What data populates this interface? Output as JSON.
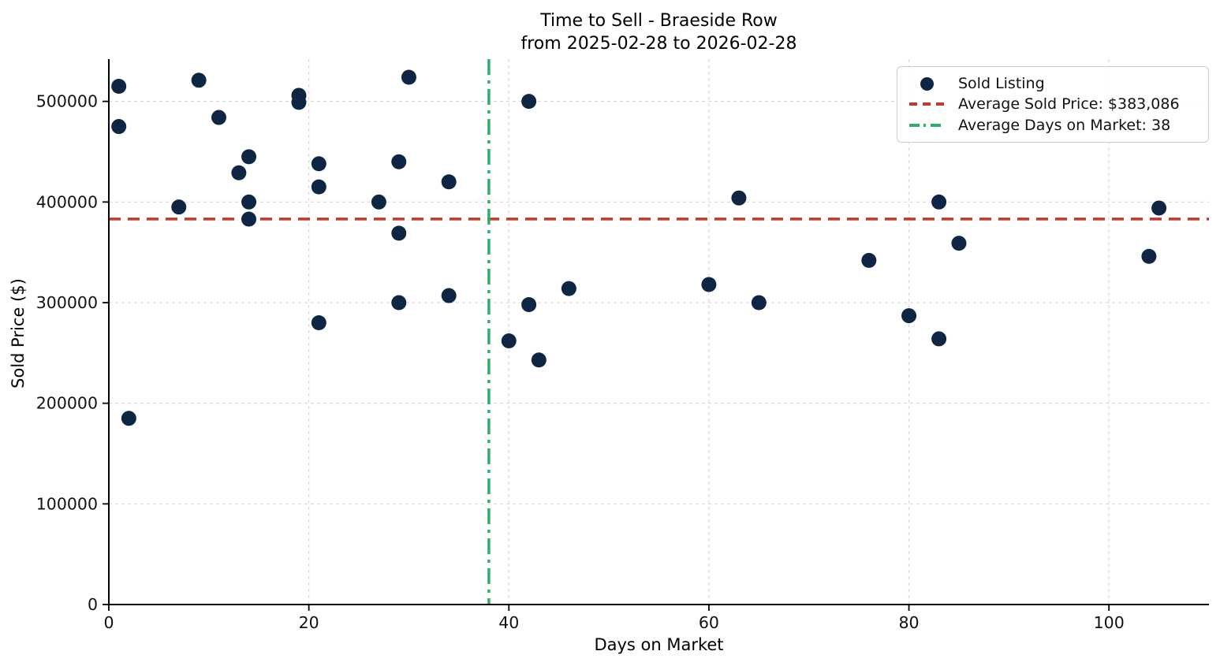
{
  "chart_data": {
    "type": "scatter",
    "title": "Time to Sell - Braeside Row",
    "subtitle": "from 2025-02-28 to 2026-02-28",
    "xlabel": "Days on Market",
    "ylabel": "Sold Price ($)",
    "xlim": [
      0,
      110
    ],
    "ylim": [
      0,
      542000
    ],
    "x_ticks": [
      0,
      20,
      40,
      60,
      80,
      100
    ],
    "y_ticks": [
      0,
      100000,
      200000,
      300000,
      400000,
      500000
    ],
    "grid": true,
    "legend_position": "upper right",
    "points": [
      [
        1,
        515000
      ],
      [
        1,
        475000
      ],
      [
        2,
        185000
      ],
      [
        7,
        395000
      ],
      [
        9,
        521000
      ],
      [
        11,
        484000
      ],
      [
        13,
        429000
      ],
      [
        14,
        445000
      ],
      [
        14,
        400000
      ],
      [
        14,
        383000
      ],
      [
        19,
        506000
      ],
      [
        19,
        499000
      ],
      [
        21,
        438000
      ],
      [
        21,
        415000
      ],
      [
        21,
        280000
      ],
      [
        27,
        400000
      ],
      [
        29,
        440000
      ],
      [
        29,
        369000
      ],
      [
        29,
        300000
      ],
      [
        30,
        524000
      ],
      [
        34,
        420000
      ],
      [
        34,
        307000
      ],
      [
        40,
        262000
      ],
      [
        42,
        500000
      ],
      [
        42,
        298000
      ],
      [
        43,
        243000
      ],
      [
        46,
        314000
      ],
      [
        60,
        318000
      ],
      [
        63,
        404000
      ],
      [
        65,
        300000
      ],
      [
        76,
        342000
      ],
      [
        80,
        287000
      ],
      [
        83,
        400000
      ],
      [
        83,
        264000
      ],
      [
        85,
        359000
      ],
      [
        104,
        346000
      ],
      [
        105,
        394000
      ]
    ],
    "avg_sold_price": 383086,
    "avg_days_on_market": 38,
    "legend": [
      {
        "label": "Sold Listing",
        "marker": "dot"
      },
      {
        "label": "Average Sold Price: $383,086",
        "marker": "dashed-line"
      },
      {
        "label": "Average Days on Market: 38",
        "marker": "dashdot-line"
      }
    ],
    "colors": {
      "point": "#0e2544",
      "avg_price_line": "#c0392b",
      "avg_days_line": "#2eae68",
      "grid": "#d9d9d9",
      "text": "#111111"
    }
  }
}
